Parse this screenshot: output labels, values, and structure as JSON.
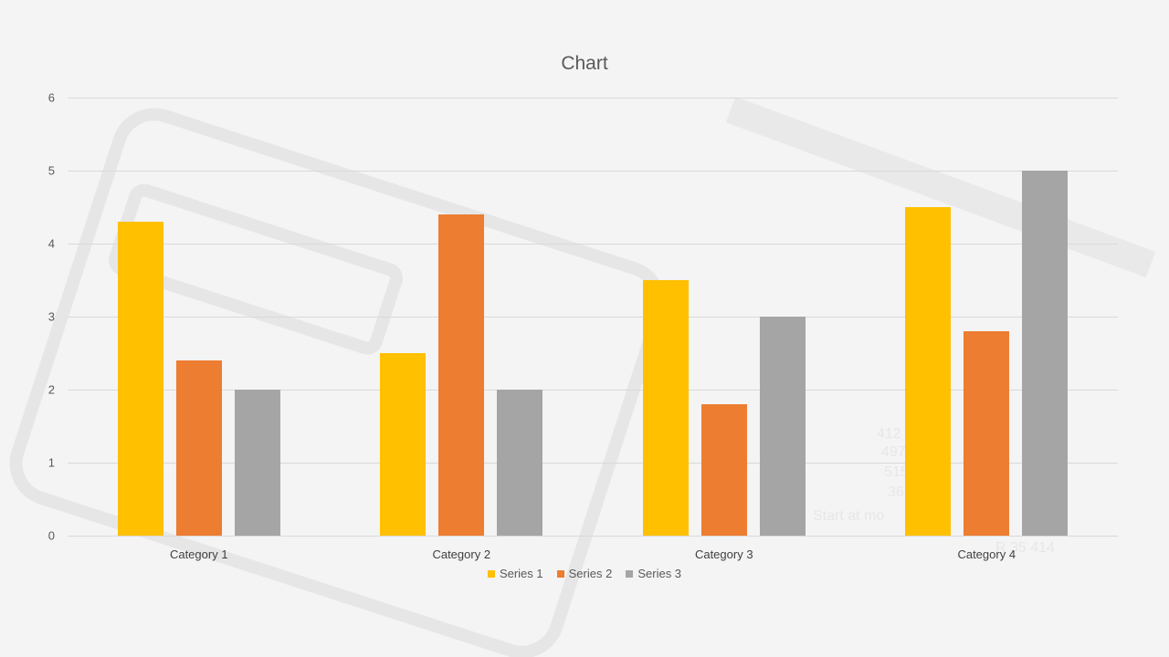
{
  "chart_data": {
    "type": "bar",
    "title": "Chart",
    "categories": [
      "Category 1",
      "Category 2",
      "Category 3",
      "Category 4"
    ],
    "series": [
      {
        "name": "Series 1",
        "color": "#FFC000",
        "values": [
          4.3,
          2.5,
          3.5,
          4.5
        ]
      },
      {
        "name": "Series 2",
        "color": "#ED7D31",
        "values": [
          2.4,
          4.4,
          1.8,
          2.8
        ]
      },
      {
        "name": "Series 3",
        "color": "#A5A5A5",
        "values": [
          2,
          2,
          3,
          5
        ]
      }
    ],
    "xlabel": "",
    "ylabel": "",
    "ylim": [
      0,
      6
    ],
    "yticks": [
      "0",
      "1",
      "2",
      "3",
      "4",
      "5",
      "6"
    ],
    "grid": true,
    "legend_position": "bottom"
  }
}
